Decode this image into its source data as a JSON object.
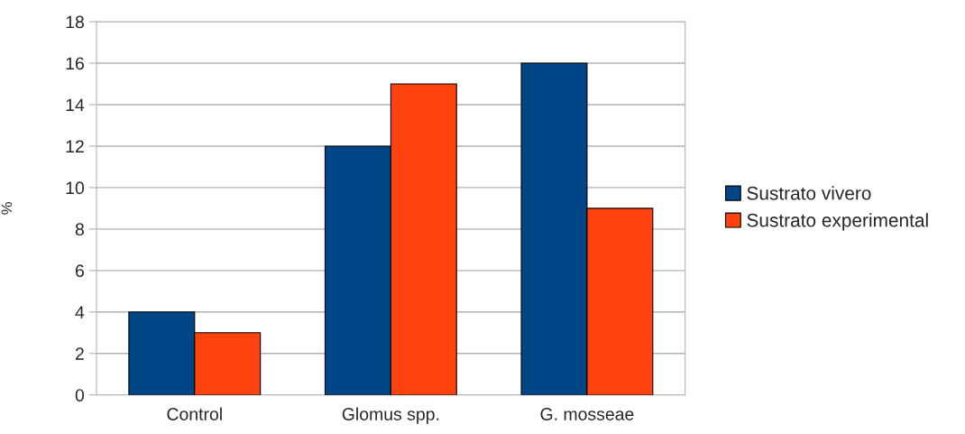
{
  "chart_data": {
    "type": "bar",
    "categories": [
      "Control",
      "Glomus spp.",
      "G. mosseae"
    ],
    "ylabel": "%",
    "series": [
      {
        "name": "Sustrato vivero",
        "color": "#004586",
        "values": [
          4,
          12,
          16
        ]
      },
      {
        "name": "Sustrato experimental",
        "color": "#ff420e",
        "values": [
          3,
          15,
          9
        ]
      }
    ],
    "ylim": [
      0,
      18
    ],
    "yticks": [
      0,
      2,
      4,
      6,
      8,
      10,
      12,
      14,
      16,
      18
    ],
    "grid": "y",
    "legend": "right"
  }
}
